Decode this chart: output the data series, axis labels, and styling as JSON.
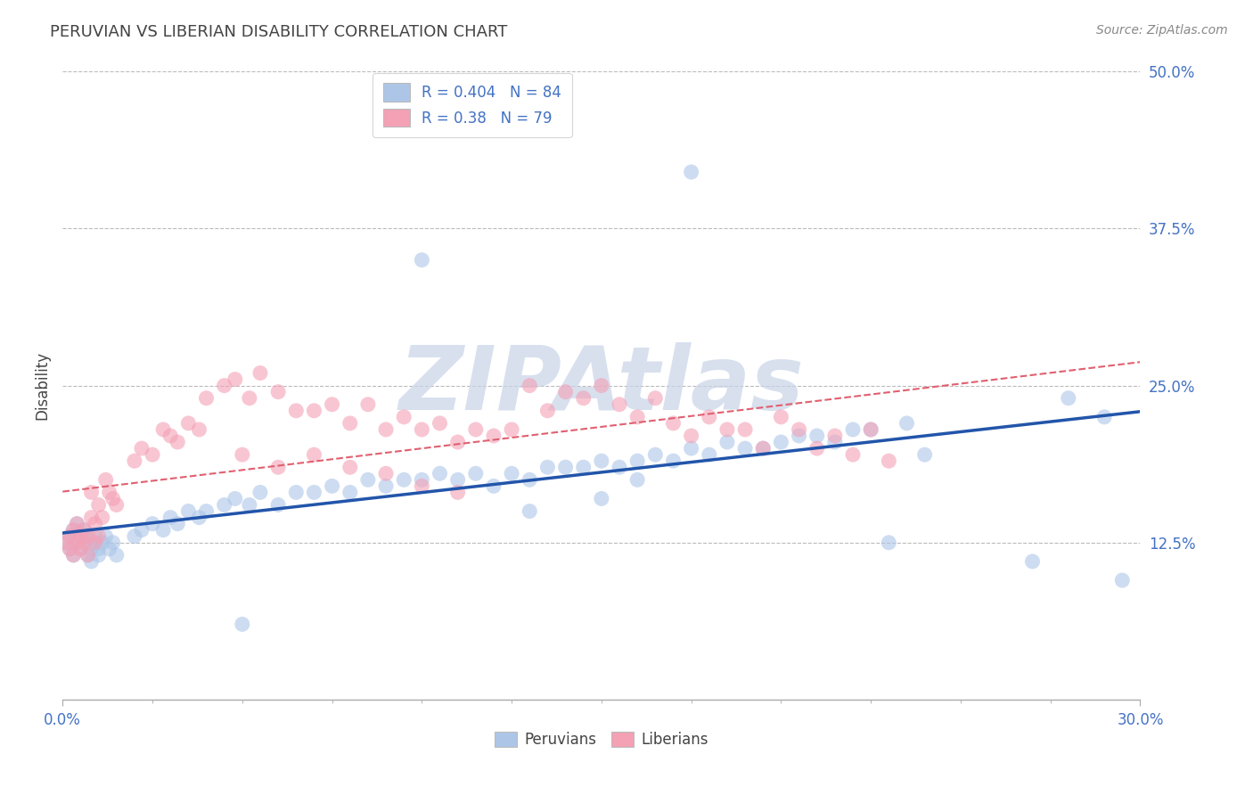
{
  "title": "PERUVIAN VS LIBERIAN DISABILITY CORRELATION CHART",
  "source": "Source: ZipAtlas.com",
  "ylabel": "Disability",
  "xlim": [
    0.0,
    0.3
  ],
  "ylim": [
    0.0,
    0.5
  ],
  "xtick_positions": [
    0.0,
    0.3
  ],
  "xtick_labels": [
    "0.0%",
    "30.0%"
  ],
  "ytick_positions": [
    0.125,
    0.25,
    0.375,
    0.5
  ],
  "ytick_labels": [
    "12.5%",
    "25.0%",
    "37.5%",
    "50.0%"
  ],
  "grid_yticks": [
    0.125,
    0.25,
    0.375,
    0.5
  ],
  "peruvian_R": 0.404,
  "peruvian_N": 84,
  "liberian_R": 0.38,
  "liberian_N": 79,
  "peruvian_color": "#adc6e8",
  "liberian_color": "#f4a0b5",
  "peruvian_line_color": "#2255aa",
  "liberian_line_color": "#e06070",
  "background_color": "#ffffff",
  "grid_color": "#bbbbbb",
  "title_color": "#444444",
  "axis_label_color": "#444444",
  "tick_color": "#4472c4",
  "watermark_text": "ZIPAtlas",
  "watermark_color": "#c8d4e8",
  "legend_label_color": "#4472c4",
  "peruvian_x": [
    0.001,
    0.002,
    0.002,
    0.003,
    0.003,
    0.004,
    0.004,
    0.005,
    0.005,
    0.006,
    0.006,
    0.007,
    0.007,
    0.008,
    0.008,
    0.009,
    0.009,
    0.01,
    0.01,
    0.011,
    0.012,
    0.013,
    0.014,
    0.015,
    0.02,
    0.022,
    0.025,
    0.028,
    0.03,
    0.032,
    0.035,
    0.038,
    0.04,
    0.045,
    0.048,
    0.052,
    0.055,
    0.06,
    0.065,
    0.07,
    0.075,
    0.08,
    0.085,
    0.09,
    0.095,
    0.1,
    0.105,
    0.11,
    0.115,
    0.12,
    0.125,
    0.13,
    0.135,
    0.14,
    0.145,
    0.15,
    0.155,
    0.16,
    0.165,
    0.17,
    0.175,
    0.18,
    0.185,
    0.19,
    0.195,
    0.2,
    0.205,
    0.21,
    0.215,
    0.22,
    0.225,
    0.23,
    0.235,
    0.24,
    0.15,
    0.16,
    0.175,
    0.29,
    0.27,
    0.13,
    0.28,
    0.295,
    0.1,
    0.05
  ],
  "peruvian_y": [
    0.125,
    0.13,
    0.12,
    0.135,
    0.115,
    0.125,
    0.14,
    0.13,
    0.12,
    0.125,
    0.135,
    0.13,
    0.115,
    0.12,
    0.11,
    0.125,
    0.13,
    0.12,
    0.115,
    0.125,
    0.13,
    0.12,
    0.125,
    0.115,
    0.13,
    0.135,
    0.14,
    0.135,
    0.145,
    0.14,
    0.15,
    0.145,
    0.15,
    0.155,
    0.16,
    0.155,
    0.165,
    0.155,
    0.165,
    0.165,
    0.17,
    0.165,
    0.175,
    0.17,
    0.175,
    0.175,
    0.18,
    0.175,
    0.18,
    0.17,
    0.18,
    0.175,
    0.185,
    0.185,
    0.185,
    0.19,
    0.185,
    0.19,
    0.195,
    0.19,
    0.2,
    0.195,
    0.205,
    0.2,
    0.2,
    0.205,
    0.21,
    0.21,
    0.205,
    0.215,
    0.215,
    0.125,
    0.22,
    0.195,
    0.16,
    0.175,
    0.42,
    0.225,
    0.11,
    0.15,
    0.24,
    0.095,
    0.35,
    0.06
  ],
  "liberian_x": [
    0.001,
    0.002,
    0.002,
    0.003,
    0.003,
    0.004,
    0.004,
    0.005,
    0.005,
    0.006,
    0.006,
    0.007,
    0.007,
    0.008,
    0.008,
    0.009,
    0.009,
    0.01,
    0.01,
    0.011,
    0.012,
    0.013,
    0.014,
    0.015,
    0.02,
    0.022,
    0.025,
    0.028,
    0.03,
    0.032,
    0.035,
    0.038,
    0.04,
    0.045,
    0.048,
    0.052,
    0.055,
    0.06,
    0.065,
    0.07,
    0.075,
    0.08,
    0.085,
    0.09,
    0.095,
    0.1,
    0.105,
    0.11,
    0.115,
    0.12,
    0.125,
    0.13,
    0.135,
    0.14,
    0.145,
    0.15,
    0.155,
    0.16,
    0.165,
    0.17,
    0.175,
    0.18,
    0.185,
    0.19,
    0.195,
    0.2,
    0.205,
    0.21,
    0.215,
    0.22,
    0.225,
    0.23,
    0.05,
    0.06,
    0.07,
    0.08,
    0.09,
    0.1,
    0.11
  ],
  "liberian_y": [
    0.125,
    0.13,
    0.12,
    0.135,
    0.115,
    0.125,
    0.14,
    0.13,
    0.12,
    0.125,
    0.135,
    0.13,
    0.115,
    0.165,
    0.145,
    0.14,
    0.125,
    0.155,
    0.13,
    0.145,
    0.175,
    0.165,
    0.16,
    0.155,
    0.19,
    0.2,
    0.195,
    0.215,
    0.21,
    0.205,
    0.22,
    0.215,
    0.24,
    0.25,
    0.255,
    0.24,
    0.26,
    0.245,
    0.23,
    0.23,
    0.235,
    0.22,
    0.235,
    0.215,
    0.225,
    0.215,
    0.22,
    0.205,
    0.215,
    0.21,
    0.215,
    0.25,
    0.23,
    0.245,
    0.24,
    0.25,
    0.235,
    0.225,
    0.24,
    0.22,
    0.21,
    0.225,
    0.215,
    0.215,
    0.2,
    0.225,
    0.215,
    0.2,
    0.21,
    0.195,
    0.215,
    0.19,
    0.195,
    0.185,
    0.195,
    0.185,
    0.18,
    0.17,
    0.165
  ]
}
